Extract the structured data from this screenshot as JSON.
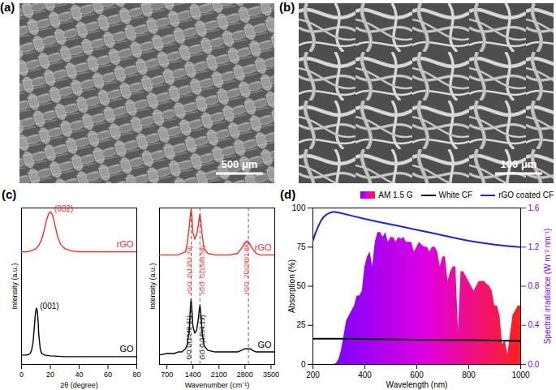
{
  "images": [
    {
      "panel": "(a)",
      "scale_bar": "500 μm"
    },
    {
      "panel": "(b)",
      "scale_bar": "100 μm"
    }
  ],
  "chart_data": [
    {
      "type": "line",
      "panel": "(c)",
      "x_label": "2θ (degree)",
      "y_label": "Intensity (a.u.)",
      "xlim": [
        0,
        80
      ],
      "xticks": [
        0,
        20,
        40,
        60,
        80
      ],
      "ylim": [
        0,
        1
      ],
      "tick_labels": "x",
      "series": [
        {
          "name": "rGO",
          "color": "#ff2a2a",
          "x": [
            0,
            4,
            8,
            10,
            12,
            14,
            15,
            16,
            17,
            18,
            19,
            20,
            21,
            22,
            23,
            24,
            25,
            27,
            30,
            35,
            40,
            50,
            60,
            70,
            80
          ],
          "values": [
            0.72,
            0.72,
            0.73,
            0.74,
            0.76,
            0.8,
            0.83,
            0.87,
            0.91,
            0.94,
            0.965,
            0.975,
            0.965,
            0.94,
            0.9,
            0.86,
            0.82,
            0.77,
            0.74,
            0.725,
            0.72,
            0.72,
            0.72,
            0.72,
            0.72
          ]
        },
        {
          "name": "GO",
          "color": "#000000",
          "x": [
            0,
            4,
            6,
            7,
            8,
            9,
            9.5,
            10,
            10.5,
            11,
            11.5,
            12,
            13,
            14,
            16,
            20,
            30,
            40,
            60,
            80
          ],
          "values": [
            0.06,
            0.06,
            0.07,
            0.09,
            0.14,
            0.25,
            0.31,
            0.35,
            0.36,
            0.34,
            0.28,
            0.19,
            0.1,
            0.07,
            0.06,
            0.055,
            0.05,
            0.05,
            0.05,
            0.05
          ]
        }
      ],
      "annotations": [
        {
          "text": "(002)",
          "x": 20,
          "series": "rGO"
        },
        {
          "text": "(001)",
          "x": 10,
          "series": "GO"
        }
      ]
    },
    {
      "type": "line",
      "x_label": "Wavenumber (cm⁻¹)",
      "y_label": "Intensity (a.u.)",
      "xlim": [
        500,
        3600
      ],
      "xticks": [
        700,
        1400,
        2100,
        2800,
        3500
      ],
      "ylim": [
        0,
        1
      ],
      "tick_labels": "x",
      "x": [
        500,
        700,
        900,
        1000,
        1100,
        1200,
        1250,
        1300,
        1330,
        1350,
        1370,
        1400,
        1450,
        1500,
        1550,
        1570,
        1590,
        1610,
        1650,
        1700,
        1800,
        2000,
        2200,
        2400,
        2600,
        2700,
        2800,
        2850,
        2900,
        2950,
        3000,
        3100,
        3200,
        3300,
        3400,
        3500,
        3600
      ],
      "series": [
        {
          "name": "rGO",
          "color": "#ff2a2a",
          "values": [
            0.7,
            0.7,
            0.7,
            0.7,
            0.71,
            0.72,
            0.78,
            0.88,
            0.96,
            0.99,
            0.95,
            0.84,
            0.8,
            0.83,
            0.9,
            0.94,
            0.96,
            0.92,
            0.82,
            0.74,
            0.71,
            0.7,
            0.7,
            0.7,
            0.71,
            0.74,
            0.78,
            0.79,
            0.78,
            0.76,
            0.74,
            0.71,
            0.7,
            0.7,
            0.7,
            0.7,
            0.7
          ]
        },
        {
          "name": "GO",
          "color": "#000000",
          "values": [
            0.06,
            0.07,
            0.07,
            0.08,
            0.08,
            0.1,
            0.13,
            0.22,
            0.36,
            0.42,
            0.36,
            0.24,
            0.2,
            0.22,
            0.3,
            0.35,
            0.38,
            0.33,
            0.2,
            0.12,
            0.09,
            0.08,
            0.08,
            0.08,
            0.08,
            0.09,
            0.1,
            0.1,
            0.1,
            0.1,
            0.09,
            0.08,
            0.08,
            0.08,
            0.08,
            0.08,
            0.08
          ]
        }
      ],
      "annotations": [
        {
          "text": "rGO: D(1353.20)",
          "x": 1353.2,
          "series": "rGO",
          "line_style": "dashed"
        },
        {
          "text": "rGO: G(1586.56)",
          "x": 1586.56,
          "series": "rGO",
          "line_style": "dashed"
        },
        {
          "text": "rGO: 2D(2892.88)",
          "x": 2892.88,
          "series": "rGO",
          "line_style": "dashed"
        },
        {
          "text": "GO:D(1348.31)",
          "x": 1348.31,
          "series": "GO"
        },
        {
          "text": "GO:G(1594.19)",
          "x": 1594.19,
          "series": "GO"
        }
      ]
    },
    {
      "type": "line",
      "panel": "(d)",
      "x_label": "Wavelength (nm)",
      "y_label": "Absorption (%)",
      "y2_label": "Spectral irradiance (W m⁻² nm⁻¹)",
      "xlim": [
        200,
        1000
      ],
      "xticks": [
        200,
        400,
        600,
        800,
        1000
      ],
      "ylim": [
        0,
        100
      ],
      "yticks": [
        0,
        25,
        50,
        75,
        100
      ],
      "y2lim": [
        0,
        1.6
      ],
      "y2ticks": [
        {
          "value": 0,
          "label": "0.0"
        },
        0.4,
        0.8,
        1.2,
        1.6
      ],
      "legend": "top-right",
      "series": [
        {
          "name": "AM 1.5 G",
          "type": "area",
          "axis": "y2",
          "color": [
            "#7d00ff",
            "#e000e0",
            "#ff2020"
          ],
          "x": [
            280,
            290,
            300,
            310,
            320,
            330,
            340,
            350,
            360,
            370,
            380,
            390,
            400,
            410,
            420,
            430,
            440,
            450,
            460,
            470,
            480,
            490,
            500,
            510,
            520,
            530,
            540,
            550,
            560,
            570,
            580,
            590,
            600,
            610,
            620,
            630,
            640,
            650,
            660,
            670,
            680,
            690,
            700,
            710,
            720,
            730,
            740,
            750,
            760,
            770,
            780,
            790,
            800,
            810,
            820,
            830,
            840,
            850,
            860,
            870,
            880,
            890,
            900,
            910,
            920,
            930,
            940,
            950,
            960,
            970,
            980,
            990,
            1000
          ],
          "values": [
            0,
            0.01,
            0.05,
            0.15,
            0.3,
            0.45,
            0.5,
            0.55,
            0.6,
            0.7,
            0.7,
            0.75,
            1.0,
            1.1,
            1.15,
            1.0,
            1.25,
            1.35,
            1.35,
            1.3,
            1.35,
            1.25,
            1.3,
            1.3,
            1.25,
            1.3,
            1.28,
            1.3,
            1.25,
            1.25,
            1.25,
            1.15,
            1.2,
            1.25,
            1.22,
            1.2,
            1.2,
            1.15,
            1.2,
            1.2,
            1.15,
            1.0,
            1.1,
            1.1,
            0.85,
            0.95,
            1.0,
            1.0,
            0.35,
            0.95,
            0.95,
            0.9,
            0.85,
            0.8,
            0.75,
            0.8,
            0.85,
            0.85,
            0.85,
            0.82,
            0.8,
            0.75,
            0.6,
            0.6,
            0.5,
            0.2,
            0.25,
            0.1,
            0.3,
            0.5,
            0.55,
            0.6,
            0.6
          ]
        },
        {
          "name": "White CF",
          "type": "line",
          "color": "#000000",
          "x": [
            200,
            300,
            400,
            500,
            600,
            700,
            800,
            900,
            1000
          ],
          "values": [
            16.5,
            16.4,
            16.3,
            16.1,
            15.8,
            15.6,
            15.5,
            15.3,
            15
          ]
        },
        {
          "name": "rGO coated CF",
          "type": "line",
          "color": "#2222dd",
          "x": [
            200,
            210,
            220,
            230,
            240,
            250,
            260,
            270,
            280,
            290,
            300,
            350,
            400,
            450,
            500,
            550,
            600,
            650,
            700,
            750,
            800,
            850,
            900,
            950,
            1000
          ],
          "values": [
            79,
            84,
            88,
            91.5,
            94,
            95.5,
            96.5,
            97.2,
            97.5,
            97.3,
            97,
            95,
            93,
            91.2,
            89.5,
            87.8,
            86,
            84.3,
            82.5,
            80.7,
            79,
            77.7,
            76.5,
            75.7,
            75
          ]
        }
      ]
    }
  ]
}
